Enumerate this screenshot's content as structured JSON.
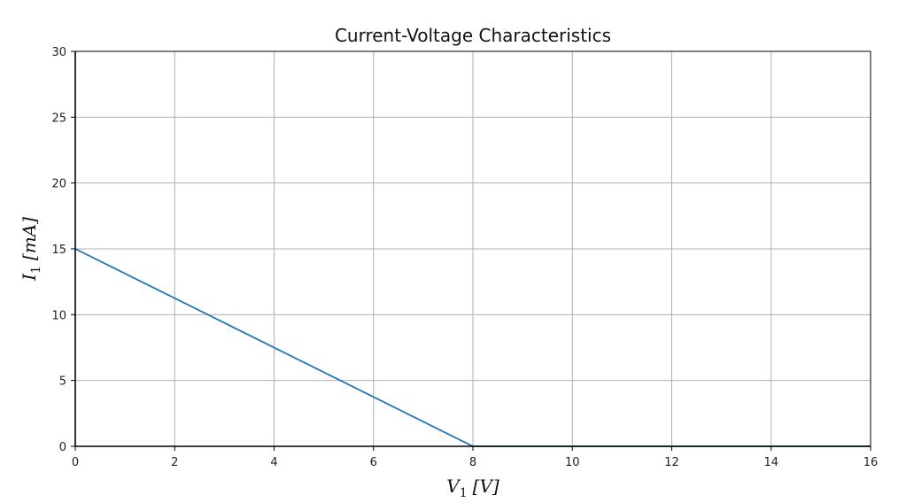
{
  "chart_data": {
    "type": "line",
    "title": "Current-Voltage Characteristics",
    "xlabel": {
      "main": "V",
      "sub": "1",
      "unit": "[V]"
    },
    "ylabel": {
      "main": "I",
      "sub": "1",
      "unit": "[mA]"
    },
    "xlim": [
      0,
      16
    ],
    "ylim": [
      0,
      30
    ],
    "xticks": [
      0,
      2,
      4,
      6,
      8,
      10,
      12,
      14,
      16
    ],
    "yticks": [
      0,
      5,
      10,
      15,
      20,
      25,
      30
    ],
    "grid": true,
    "series": [
      {
        "color": "#1f77b4",
        "x": [
          0,
          8,
          16
        ],
        "y": [
          15,
          0,
          0
        ]
      }
    ]
  }
}
